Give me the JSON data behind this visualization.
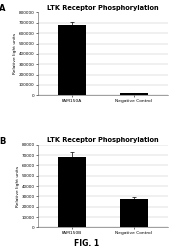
{
  "panel_A": {
    "title": "LTK Receptor Phosphorylation",
    "categories": [
      "FAM150A",
      "Negative Control"
    ],
    "values": [
      680000,
      18000
    ],
    "errors": [
      25000,
      3000
    ],
    "ylim": [
      0,
      800000
    ],
    "yticks": [
      0,
      100000,
      200000,
      300000,
      400000,
      500000,
      600000,
      700000,
      800000
    ],
    "ytick_labels": [
      "0",
      "100000",
      "200000",
      "300000",
      "400000",
      "500000",
      "600000",
      "700000",
      "800000"
    ],
    "ylabel": "Relative light units",
    "bar_color": "#000000",
    "label": "A"
  },
  "panel_B": {
    "title": "LTK Receptor Phosphorylation",
    "categories": [
      "FAM150B",
      "Negative Control"
    ],
    "values": [
      68000,
      28000
    ],
    "errors": [
      5000,
      1500
    ],
    "ylim": [
      0,
      80000
    ],
    "yticks": [
      0,
      10000,
      20000,
      30000,
      40000,
      50000,
      60000,
      70000,
      80000
    ],
    "ytick_labels": [
      "0",
      "10000",
      "20000",
      "30000",
      "40000",
      "50000",
      "60000",
      "70000",
      "80000"
    ],
    "ylabel": "Relative light units",
    "bar_color": "#000000",
    "label": "B"
  },
  "fig_label": "FIG. 1",
  "background_color": "#ffffff",
  "title_fontsize": 4.8,
  "axis_fontsize": 3.2,
  "tick_fontsize": 3.0,
  "xtick_fontsize": 3.2,
  "bar_width": 0.45,
  "fig_label_fontsize": 5.5,
  "panel_label_fontsize": 6.0
}
